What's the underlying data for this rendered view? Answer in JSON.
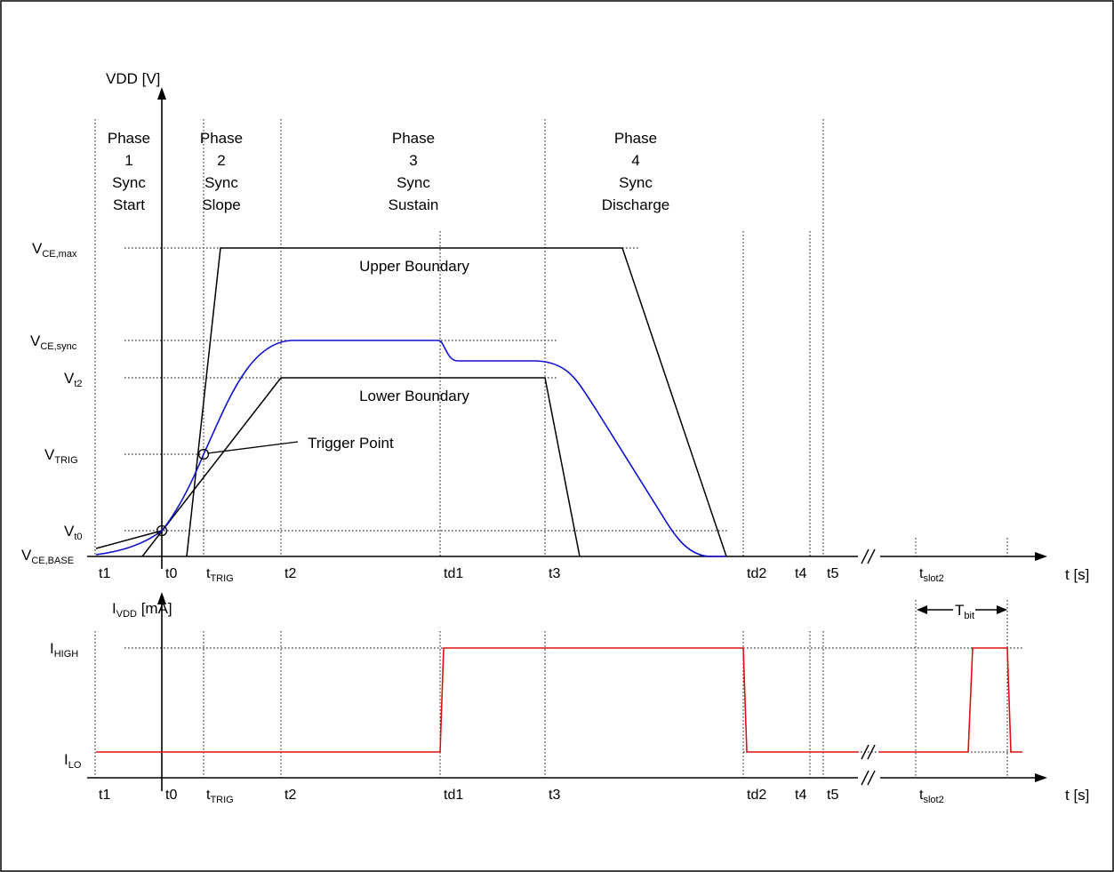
{
  "colors": {
    "vdd_curve": "#1010d0",
    "idd_curve": "#e01010",
    "boundary": "#000000"
  },
  "top_plot": {
    "y_axis_label": "VDD [V]",
    "x_axis_label": "t [s]",
    "y_levels": [
      {
        "main": "V",
        "sub": "CE,max"
      },
      {
        "main": "V",
        "sub": "CE,sync"
      },
      {
        "main": "V",
        "sub": "t2"
      },
      {
        "main": "V",
        "sub": "TRIG"
      },
      {
        "main": "V",
        "sub": "t0"
      },
      {
        "main": "V",
        "sub": "CE,BASE"
      }
    ],
    "phases": [
      {
        "lines": [
          "Phase",
          "1",
          "Sync",
          "Start"
        ]
      },
      {
        "lines": [
          "Phase",
          "2",
          "Sync",
          "Slope"
        ]
      },
      {
        "lines": [
          "Phase",
          "3",
          "Sync",
          "Sustain"
        ]
      },
      {
        "lines": [
          "Phase",
          "4",
          "Sync",
          "Discharge"
        ]
      }
    ],
    "upper_boundary_label": "Upper Boundary",
    "lower_boundary_label": "Lower Boundary",
    "trigger_point_label": "Trigger Point"
  },
  "bottom_plot": {
    "y_axis_label": {
      "main": "I",
      "sub": "VDD",
      "rest": " [mA]"
    },
    "x_axis_label": "t [s]",
    "y_levels": [
      {
        "main": "I",
        "sub": "HIGH"
      },
      {
        "main": "I",
        "sub": "LO"
      }
    ],
    "t_bit": {
      "main": "T",
      "sub": "bit"
    }
  },
  "time_ticks": [
    {
      "main": "t1",
      "sub": ""
    },
    {
      "main": "t0",
      "sub": ""
    },
    {
      "main": "t",
      "sub": "TRIG"
    },
    {
      "main": "t2",
      "sub": ""
    },
    {
      "main": "td1",
      "sub": ""
    },
    {
      "main": "t3",
      "sub": ""
    },
    {
      "main": "td2",
      "sub": ""
    },
    {
      "main": "t4",
      "sub": ""
    },
    {
      "main": "t5",
      "sub": ""
    },
    {
      "main": "t",
      "sub": "slot2"
    }
  ]
}
